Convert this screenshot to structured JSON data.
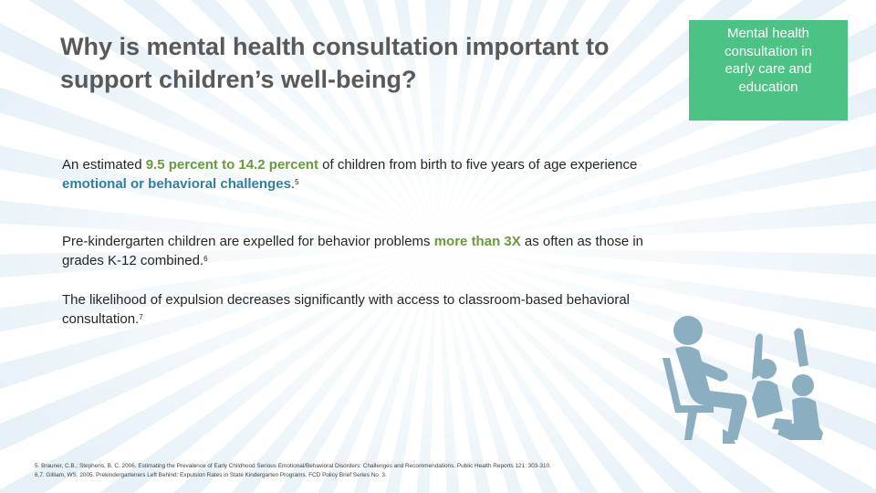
{
  "title": "Why is mental health consultation important to support children’s well-being?",
  "callout": {
    "text": "Mental health consultation in early care and education"
  },
  "paragraphs": [
    {
      "before": "An estimated ",
      "highlight1": "9.5 percent to 14.2 percent",
      "middle": " of children from birth to five years of age experience ",
      "highlight2": "emotional or behavioral challenges",
      "after": ".",
      "ref": "5"
    },
    {
      "before": "Pre-kindergarten children are expelled for behavior problems ",
      "highlight": "more than 3X",
      "after": " as often as those in grades K-12 combined.",
      "ref": "6"
    },
    {
      "text": "The likelihood of expulsion decreases significantly with access to classroom-based behavioral consultation.",
      "ref": "7"
    }
  ],
  "references": [
    "5. Brauner, C.B.; Stephens, B. C. 2006. Estimating the Prevalence of Early Childhood Serious Emotional/Behavioral Disorders: Challenges and Recommendations. Public Health Reports 121: 303-310.",
    "6,7. Gilliam, WS. 2005. Prekindergarteners Left Behind: Expulsion Rates in State Kindergarten Programs. FCD Policy Brief Series No. 3."
  ],
  "illustration": {
    "icon": "adult-with-children-icon",
    "color": "#8bafc1"
  },
  "colors": {
    "title": "#595959",
    "green_highlight": "#6a9a3c",
    "blue_highlight": "#2f7fa5",
    "callout_bg": "#4cc384"
  }
}
